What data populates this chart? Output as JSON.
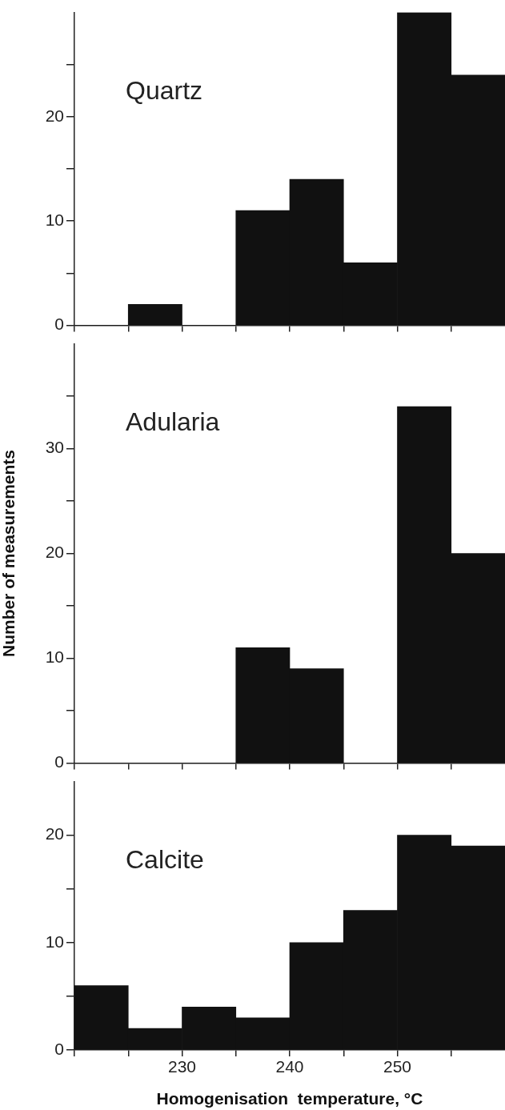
{
  "chart_data": [
    {
      "type": "histogram",
      "title": "Quartz",
      "bins": [
        220,
        225,
        230,
        235,
        240,
        245,
        250,
        255,
        260
      ],
      "values": [
        0,
        2,
        0,
        11,
        14,
        6,
        30,
        24
      ],
      "color": "#111111",
      "xlim": [
        220,
        260
      ],
      "ylim": [
        0,
        30
      ],
      "xticks": [
        {
          "value": 220,
          "label": null
        },
        {
          "value": 225,
          "label": null
        },
        {
          "value": 230,
          "label": null
        },
        {
          "value": 235,
          "label": null
        },
        {
          "value": 240,
          "label": null
        },
        {
          "value": 245,
          "label": null
        },
        {
          "value": 250,
          "label": null
        },
        {
          "value": 255,
          "label": null
        }
      ],
      "yticks": [
        0,
        {
          "value": 5,
          "label": null
        },
        10,
        {
          "value": 15,
          "label": null
        },
        20,
        {
          "value": 25,
          "label": null
        }
      ],
      "tick_labels": "y"
    },
    {
      "type": "histogram",
      "title": "Adularia",
      "ylabel": "Number of measurements",
      "bins": [
        220,
        225,
        230,
        235,
        240,
        245,
        250,
        255,
        260
      ],
      "values": [
        0,
        0,
        0,
        11,
        9,
        0,
        34,
        20
      ],
      "color": "#111111",
      "xlim": [
        220,
        260
      ],
      "ylim": [
        0,
        40
      ],
      "xticks": [
        {
          "value": 220,
          "label": null
        },
        {
          "value": 225,
          "label": null
        },
        {
          "value": 230,
          "label": null
        },
        {
          "value": 235,
          "label": null
        },
        {
          "value": 240,
          "label": null
        },
        {
          "value": 245,
          "label": null
        },
        {
          "value": 250,
          "label": null
        },
        {
          "value": 255,
          "label": null
        }
      ],
      "yticks": [
        0,
        {
          "value": 5,
          "label": null
        },
        10,
        {
          "value": 15,
          "label": null
        },
        20,
        {
          "value": 25,
          "label": null
        },
        30,
        {
          "value": 35,
          "label": null
        }
      ],
      "tick_labels": "y"
    },
    {
      "type": "histogram",
      "title": "Calcite",
      "xlabel": "Homogenisation  temperature, °C",
      "bins": [
        220,
        225,
        230,
        235,
        240,
        245,
        250,
        255,
        260
      ],
      "values": [
        6,
        2,
        4,
        3,
        10,
        13,
        20,
        19
      ],
      "color": "#111111",
      "xlim": [
        220,
        260
      ],
      "ylim": [
        0,
        25
      ],
      "xticks": [
        {
          "value": 220,
          "label": null
        },
        {
          "value": 225,
          "label": null
        },
        230,
        {
          "value": 235,
          "label": null
        },
        240,
        {
          "value": 245,
          "label": null
        },
        250,
        {
          "value": 255,
          "label": null
        }
      ],
      "yticks": [
        0,
        {
          "value": 5,
          "label": null
        },
        10,
        {
          "value": 15,
          "label": null
        },
        20
      ]
    }
  ]
}
